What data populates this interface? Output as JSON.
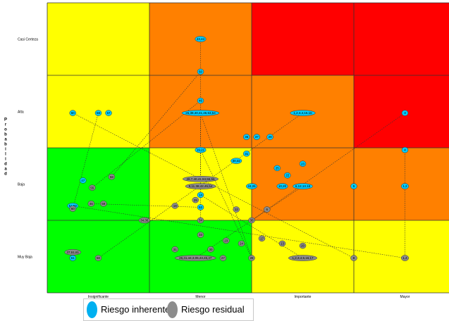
{
  "chart_data": {
    "type": "scatter",
    "title": "",
    "ylabel": "Probabilidad",
    "y_categories": [
      "Casi Certeza",
      "Alta",
      "Baja",
      "Muy Baja"
    ],
    "x_categories": [
      "Insignificante",
      "Menor",
      "Importante",
      "Mayor"
    ],
    "heatmap_colors": [
      [
        "#ffff00",
        "#ff8000",
        "#ff0000",
        "#ff0000"
      ],
      [
        "#ffff00",
        "#ff8000",
        "#ff8000",
        "#ff0000"
      ],
      [
        "#00ff00",
        "#ffff00",
        "#ff8000",
        "#ff8000"
      ],
      [
        "#00ff00",
        "#00ff00",
        "#ffff00",
        "#ffff00"
      ]
    ],
    "series": [
      {
        "name": "Riesgo inherente",
        "color": "#00ccff",
        "points": [
          {
            "label": "43,44",
            "x": 1.5,
            "y": 3.5
          },
          {
            "label": "50",
            "x": 1.5,
            "y": 3.05
          },
          {
            "label": "46",
            "x": 1.5,
            "y": 2.65
          },
          {
            "label": "26,38,40,41,45,53,54",
            "x": 1.5,
            "y": 2.48
          },
          {
            "label": "60",
            "x": 0.25,
            "y": 2.48
          },
          {
            "label": "58",
            "x": 0.5,
            "y": 2.48
          },
          {
            "label": "57",
            "x": 0.6,
            "y": 2.48
          },
          {
            "label": "1,2,3,4,15,16",
            "x": 2.5,
            "y": 2.48
          },
          {
            "label": "3",
            "x": 3.5,
            "y": 2.48
          },
          {
            "label": "36",
            "x": 1.95,
            "y": 2.15
          },
          {
            "label": "37",
            "x": 2.05,
            "y": 2.15
          },
          {
            "label": "29",
            "x": 2.18,
            "y": 2.15
          },
          {
            "label": "19,21",
            "x": 1.5,
            "y": 1.97
          },
          {
            "label": "4",
            "x": 3.5,
            "y": 1.97
          },
          {
            "label": "31",
            "x": 1.95,
            "y": 1.92
          },
          {
            "label": "30,32",
            "x": 1.85,
            "y": 1.82
          },
          {
            "label": "23",
            "x": 2.5,
            "y": 1.78
          },
          {
            "label": "25",
            "x": 2.25,
            "y": 1.72
          },
          {
            "label": "22",
            "x": 2.35,
            "y": 1.62
          },
          {
            "label": "47",
            "x": 0.35,
            "y": 1.55
          },
          {
            "label": "24,26",
            "x": 2.0,
            "y": 1.47
          },
          {
            "label": "10,20",
            "x": 2.3,
            "y": 1.47
          },
          {
            "label": "6,12,13,18",
            "x": 2.5,
            "y": 1.47
          },
          {
            "label": "5",
            "x": 3.0,
            "y": 1.47
          },
          {
            "label": "1,2",
            "x": 3.5,
            "y": 1.47
          },
          {
            "label": "14",
            "x": 1.5,
            "y": 1.35
          },
          {
            "label": "52",
            "x": 1.5,
            "y": 1.18
          },
          {
            "label": "51,59",
            "x": 0.25,
            "y": 1.2
          },
          {
            "label": "61",
            "x": 0.25,
            "y": 0.48
          }
        ]
      },
      {
        "name": "Riesgo residual",
        "color": "#8c8c8c",
        "points": [
          {
            "label": "39,7,40,41,53,55,56",
            "x": 1.5,
            "y": 1.57
          },
          {
            "label": "9,11,38,42,45,54",
            "x": 1.5,
            "y": 1.47
          },
          {
            "label": "58",
            "x": 0.63,
            "y": 1.6
          },
          {
            "label": "55",
            "x": 0.44,
            "y": 1.45
          },
          {
            "label": "46",
            "x": 0.43,
            "y": 1.23
          },
          {
            "label": "59",
            "x": 0.55,
            "y": 1.23
          },
          {
            "label": "60",
            "x": 0.25,
            "y": 1.16
          },
          {
            "label": "34,36",
            "x": 0.95,
            "y": 1.0
          },
          {
            "label": "29",
            "x": 1.45,
            "y": 1.28
          },
          {
            "label": "19",
            "x": 1.25,
            "y": 1.2
          },
          {
            "label": "12",
            "x": 1.85,
            "y": 1.15
          },
          {
            "label": "6",
            "x": 2.15,
            "y": 1.15
          },
          {
            "label": "34",
            "x": 1.5,
            "y": 1.0
          },
          {
            "label": "30",
            "x": 2.0,
            "y": 1.0
          },
          {
            "label": "33",
            "x": 1.5,
            "y": 0.8
          },
          {
            "label": "23",
            "x": 1.75,
            "y": 0.72
          },
          {
            "label": "17",
            "x": 2.1,
            "y": 0.75
          },
          {
            "label": "24",
            "x": 1.9,
            "y": 0.68
          },
          {
            "label": "13",
            "x": 2.3,
            "y": 0.68
          },
          {
            "label": "20",
            "x": 2.5,
            "y": 0.65
          },
          {
            "label": "31",
            "x": 1.25,
            "y": 0.6
          },
          {
            "label": "30",
            "x": 1.6,
            "y": 0.6
          },
          {
            "label": "50",
            "x": 0.5,
            "y": 0.48
          },
          {
            "label": "26,41,44,3,05,43,45,47",
            "x": 1.45,
            "y": 0.48
          },
          {
            "label": "27",
            "x": 1.72,
            "y": 0.48
          },
          {
            "label": "28",
            "x": 2.0,
            "y": 0.48
          },
          {
            "label": "1,2,3,4,5,16,17",
            "x": 2.5,
            "y": 0.48
          },
          {
            "label": "8",
            "x": 3.0,
            "y": 0.48
          },
          {
            "label": "1,4",
            "x": 3.5,
            "y": 0.48
          },
          {
            "label": "37,51,61",
            "x": 0.25,
            "y": 0.56
          }
        ]
      }
    ],
    "links": [
      [
        0,
        1
      ],
      [
        1,
        2
      ],
      [
        2,
        3
      ],
      [
        3,
        12
      ],
      [
        3,
        25
      ],
      [
        12,
        25
      ],
      [
        25,
        26
      ],
      [
        26,
        4
      ],
      [
        3,
        0
      ],
      [
        5,
        6
      ],
      [
        4,
        27
      ],
      [
        27,
        28
      ],
      [
        7,
        22
      ],
      [
        22,
        23
      ],
      [
        8,
        13
      ],
      [
        13,
        28
      ]
    ],
    "legend_position": "bottom-left"
  },
  "legend": {
    "inherent_label": "Riesgo inherente",
    "residual_label": "Riesgo residual"
  }
}
